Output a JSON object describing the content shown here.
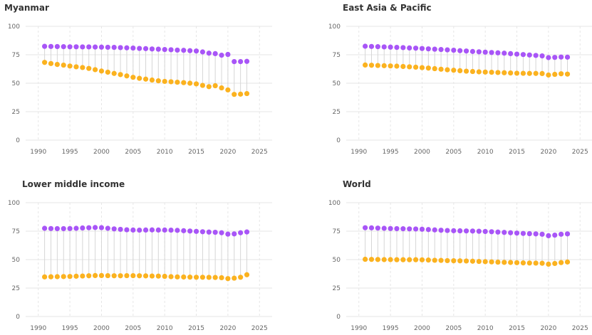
{
  "colors": {
    "male": "#a855f7",
    "female": "#fbb21f",
    "connector": "#d6d6d6",
    "grid": "#e6e6e6"
  },
  "chart_data": [
    {
      "type": "scatter",
      "title": "Myanmar",
      "x": [
        1991,
        1992,
        1993,
        1994,
        1995,
        1996,
        1997,
        1998,
        1999,
        2000,
        2001,
        2002,
        2003,
        2004,
        2005,
        2006,
        2007,
        2008,
        2009,
        2010,
        2011,
        2012,
        2013,
        2014,
        2015,
        2016,
        2017,
        2018,
        2019,
        2020,
        2021,
        2022,
        2023
      ],
      "series": [
        {
          "values": [
            82.4,
            82.3,
            82.2,
            82.1,
            82.0,
            82.0,
            81.9,
            81.9,
            81.8,
            81.7,
            81.6,
            81.5,
            81.3,
            81.1,
            80.9,
            80.6,
            80.4,
            80.1,
            79.9,
            79.6,
            79.4,
            79.1,
            78.9,
            78.6,
            78.3,
            77.5,
            76.4,
            76.0,
            74.6,
            75.3,
            69.0,
            69.0,
            69.2
          ]
        },
        {
          "values": [
            68.3,
            67.3,
            66.5,
            65.9,
            65.1,
            64.4,
            63.8,
            63.0,
            61.9,
            60.7,
            59.7,
            58.6,
            57.6,
            56.4,
            55.2,
            54.3,
            53.6,
            52.8,
            52.1,
            51.6,
            51.3,
            50.9,
            50.5,
            50.0,
            49.4,
            48.1,
            47.0,
            47.8,
            45.9,
            44.1,
            40.2,
            40.4,
            40.9
          ]
        }
      ],
      "xlim": [
        1988,
        2027
      ],
      "ylim": [
        0,
        100
      ],
      "xticks": [
        "1990",
        "1995",
        "2000",
        "2005",
        "2010",
        "2015",
        "2020",
        "2025"
      ],
      "yticks": [
        "0",
        "25",
        "50",
        "75",
        "100"
      ],
      "grid": true
    },
    {
      "type": "scatter",
      "title": "East Asia & Pacific",
      "x": [
        1991,
        1992,
        1993,
        1994,
        1995,
        1996,
        1997,
        1998,
        1999,
        2000,
        2001,
        2002,
        2003,
        2004,
        2005,
        2006,
        2007,
        2008,
        2009,
        2010,
        2011,
        2012,
        2013,
        2014,
        2015,
        2016,
        2017,
        2018,
        2019,
        2020,
        2021,
        2022,
        2023
      ],
      "series": [
        {
          "values": [
            82.5,
            82.3,
            82.1,
            81.9,
            81.7,
            81.5,
            81.3,
            81.0,
            80.8,
            80.5,
            80.2,
            79.9,
            79.6,
            79.3,
            79.0,
            78.6,
            78.3,
            77.9,
            77.6,
            77.3,
            77.0,
            76.7,
            76.4,
            76.0,
            75.6,
            75.2,
            74.8,
            74.4,
            74.0,
            72.5,
            72.7,
            73.0,
            72.9
          ]
        },
        {
          "values": [
            66.0,
            65.8,
            65.6,
            65.4,
            65.2,
            65.0,
            64.7,
            64.4,
            64.1,
            63.7,
            63.3,
            62.8,
            62.3,
            61.8,
            61.4,
            61.0,
            60.6,
            60.3,
            60.0,
            59.8,
            59.6,
            59.4,
            59.2,
            59.0,
            58.8,
            58.7,
            58.6,
            58.6,
            58.5,
            57.2,
            57.8,
            58.3,
            58.0
          ]
        }
      ],
      "xlim": [
        1988,
        2027
      ],
      "ylim": [
        0,
        100
      ],
      "xticks": [
        "1990",
        "1995",
        "2000",
        "2005",
        "2010",
        "2015",
        "2020",
        "2025"
      ],
      "yticks": [
        "0",
        "25",
        "50",
        "75",
        "100"
      ],
      "grid": true
    },
    {
      "type": "scatter",
      "title": "Lower middle income",
      "x": [
        1991,
        1992,
        1993,
        1994,
        1995,
        1996,
        1997,
        1998,
        1999,
        2000,
        2001,
        2002,
        2003,
        2004,
        2005,
        2006,
        2007,
        2008,
        2009,
        2010,
        2011,
        2012,
        2013,
        2014,
        2015,
        2016,
        2017,
        2018,
        2019,
        2020,
        2021,
        2022,
        2023
      ],
      "series": [
        {
          "values": [
            77.5,
            77.3,
            77.2,
            77.2,
            77.3,
            77.5,
            77.8,
            78.0,
            78.2,
            78.1,
            77.5,
            77.0,
            76.6,
            76.2,
            76.0,
            75.9,
            76.0,
            76.1,
            76.0,
            76.0,
            75.9,
            75.7,
            75.4,
            75.1,
            74.8,
            74.5,
            74.2,
            74.0,
            73.6,
            72.4,
            72.6,
            73.6,
            74.3
          ]
        },
        {
          "values": [
            34.8,
            34.9,
            35.0,
            35.1,
            35.2,
            35.4,
            35.6,
            35.8,
            36.0,
            36.0,
            35.9,
            35.8,
            35.8,
            35.9,
            35.9,
            35.8,
            35.7,
            35.6,
            35.5,
            35.3,
            35.0,
            34.8,
            34.7,
            34.6,
            34.5,
            34.5,
            34.4,
            34.3,
            34.1,
            33.3,
            33.7,
            34.5,
            36.7
          ]
        }
      ],
      "xlim": [
        1988,
        2027
      ],
      "ylim": [
        0,
        100
      ],
      "xticks": [
        "1990",
        "1995",
        "2000",
        "2005",
        "2010",
        "2015",
        "2020",
        "2025"
      ],
      "yticks": [
        "0",
        "25",
        "50",
        "75",
        "100"
      ],
      "grid": true
    },
    {
      "type": "scatter",
      "title": "World",
      "x": [
        1991,
        1992,
        1993,
        1994,
        1995,
        1996,
        1997,
        1998,
        1999,
        2000,
        2001,
        2002,
        2003,
        2004,
        2005,
        2006,
        2007,
        2008,
        2009,
        2010,
        2011,
        2012,
        2013,
        2014,
        2015,
        2016,
        2017,
        2018,
        2019,
        2020,
        2021,
        2022,
        2023
      ],
      "series": [
        {
          "values": [
            78.0,
            77.9,
            77.7,
            77.5,
            77.3,
            77.2,
            77.1,
            77.0,
            76.9,
            76.7,
            76.4,
            76.1,
            75.8,
            75.6,
            75.4,
            75.3,
            75.2,
            75.1,
            74.9,
            74.7,
            74.5,
            74.2,
            73.9,
            73.6,
            73.3,
            73.0,
            72.8,
            72.6,
            72.3,
            71.0,
            71.5,
            72.3,
            72.6
          ]
        },
        {
          "values": [
            50.3,
            50.2,
            50.1,
            50.0,
            50.0,
            49.9,
            49.9,
            49.9,
            49.9,
            49.8,
            49.6,
            49.4,
            49.3,
            49.1,
            49.0,
            48.9,
            48.8,
            48.6,
            48.4,
            48.2,
            48.0,
            47.8,
            47.6,
            47.5,
            47.3,
            47.1,
            47.0,
            46.9,
            46.8,
            46.0,
            46.6,
            47.4,
            47.9
          ]
        }
      ],
      "xlim": [
        1988,
        2027
      ],
      "ylim": [
        0,
        100
      ],
      "xticks": [
        "1990",
        "1995",
        "2000",
        "2005",
        "2010",
        "2015",
        "2020",
        "2025"
      ],
      "yticks": [
        "0",
        "25",
        "50",
        "75",
        "100"
      ],
      "grid": true
    }
  ]
}
